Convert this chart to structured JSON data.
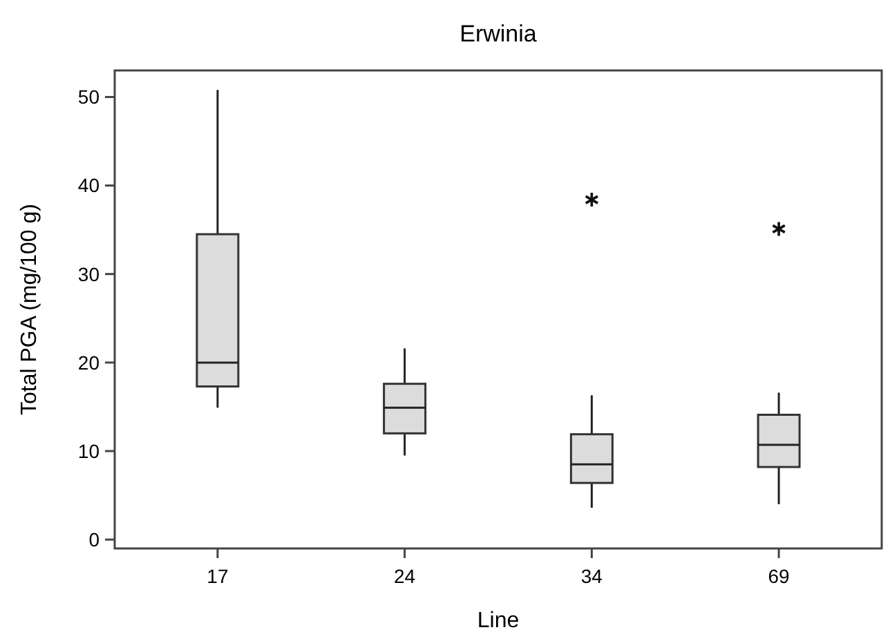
{
  "chart_data": {
    "type": "box",
    "title": "Erwinia",
    "xlabel": "Line",
    "ylabel": "Total PGA (mg/100 g)",
    "categories": [
      "17",
      "24",
      "34",
      "69"
    ],
    "boxes": [
      {
        "low": 14.9,
        "q1": 17.3,
        "median": 20,
        "q3": 34.5,
        "high": 50.8
      },
      {
        "low": 9.5,
        "q1": 12,
        "median": 14.9,
        "q3": 17.6,
        "high": 21.6
      },
      {
        "low": 3.6,
        "q1": 6.4,
        "median": 8.5,
        "q3": 11.9,
        "high": 16.3,
        "outliers": [
          38.4
        ]
      },
      {
        "low": 4,
        "q1": 8.2,
        "median": 10.7,
        "q3": 14.1,
        "high": 16.6,
        "outliers": [
          35.1
        ]
      }
    ],
    "color": "#dcdcdc",
    "ylim": [
      -1,
      53
    ],
    "yticks": [
      0,
      10,
      20,
      30,
      40,
      50
    ],
    "grid": false,
    "marker": "star"
  }
}
